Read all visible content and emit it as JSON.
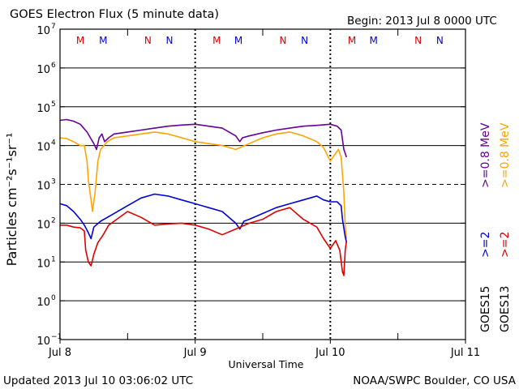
{
  "chart_data": {
    "type": "line",
    "title": "GOES Electron Flux (5 minute data)",
    "begin_label": "Begin: 2013 Jul 8 0000 UTC",
    "xlabel": "Universal Time",
    "ylabel": "Particles cm⁻²s⁻¹sr⁻¹",
    "updated": "Updated 2013 Jul 10 03:06:02 UTC",
    "source": "NOAA/SWPC Boulder, CO USA",
    "x_unit": "days since Jul 8 0000 UTC",
    "xlim": [
      0,
      3
    ],
    "ylim_log10": [
      -1,
      7
    ],
    "x_ticks": [
      {
        "x": 0,
        "label": "Jul 8"
      },
      {
        "x": 1,
        "label": "Jul 9"
      },
      {
        "x": 2,
        "label": "Jul 10"
      },
      {
        "x": 3,
        "label": "Jul 11"
      }
    ],
    "y_ticks": [
      {
        "exp": 7,
        "base": "10",
        "sup": "7"
      },
      {
        "exp": 6,
        "base": "10",
        "sup": "6"
      },
      {
        "exp": 5,
        "base": "10",
        "sup": "5"
      },
      {
        "exp": 4,
        "base": "10",
        "sup": "4"
      },
      {
        "exp": 3,
        "base": "10",
        "sup": "3"
      },
      {
        "exp": 2,
        "base": "10",
        "sup": "2"
      },
      {
        "exp": 1,
        "base": "10",
        "sup": "1"
      },
      {
        "exp": 0,
        "base": "10",
        "sup": "0"
      },
      {
        "exp": -1,
        "base": "10",
        "sup": "−1"
      }
    ],
    "gridlines_log10": [
      6,
      5,
      4,
      2,
      1,
      0
    ],
    "dashed_gridline_log10": 3,
    "noon_markers_x": [
      0.5,
      1.5,
      2.5
    ],
    "day_markers_x": [
      1,
      2
    ],
    "letter_markers": [
      {
        "x": 0.15,
        "label": "M",
        "color": "#dd0000"
      },
      {
        "x": 0.32,
        "label": "M",
        "color": "#0000dd"
      },
      {
        "x": 0.65,
        "label": "N",
        "color": "#dd0000"
      },
      {
        "x": 0.81,
        "label": "N",
        "color": "#0000dd"
      },
      {
        "x": 1.16,
        "label": "M",
        "color": "#dd0000"
      },
      {
        "x": 1.32,
        "label": "M",
        "color": "#0000dd"
      },
      {
        "x": 1.65,
        "label": "N",
        "color": "#dd0000"
      },
      {
        "x": 1.81,
        "label": "N",
        "color": "#0000dd"
      },
      {
        "x": 2.16,
        "label": "M",
        "color": "#dd0000"
      },
      {
        "x": 2.32,
        "label": "M",
        "color": "#0000dd"
      },
      {
        "x": 2.65,
        "label": "N",
        "color": "#dd0000"
      },
      {
        "x": 2.81,
        "label": "N",
        "color": "#0000dd"
      }
    ],
    "legend": {
      "placement": "right, vertical text",
      "groups": [
        {
          "satellite": "GOES15",
          "items": [
            {
              "label": ">=2",
              "color": "#0000dd"
            },
            {
              "label": ">=0.8 MeV",
              "color": "#660099"
            }
          ]
        },
        {
          "satellite": "GOES13",
          "items": [
            {
              "label": ">=2",
              "color": "#dd0000"
            },
            {
              "label": ">=0.8 MeV",
              "color": "#ffa500"
            }
          ]
        }
      ]
    },
    "series": [
      {
        "name": "GOES15 >=0.8 MeV",
        "color": "#660099",
        "points": [
          [
            0.0,
            4.65
          ],
          [
            0.05,
            4.67
          ],
          [
            0.1,
            4.63
          ],
          [
            0.15,
            4.55
          ],
          [
            0.2,
            4.35
          ],
          [
            0.25,
            4.05
          ],
          [
            0.27,
            3.9
          ],
          [
            0.29,
            4.2
          ],
          [
            0.31,
            4.3
          ],
          [
            0.33,
            4.1
          ],
          [
            0.36,
            4.2
          ],
          [
            0.4,
            4.3
          ],
          [
            0.5,
            4.35
          ],
          [
            0.6,
            4.4
          ],
          [
            0.7,
            4.45
          ],
          [
            0.8,
            4.5
          ],
          [
            0.9,
            4.53
          ],
          [
            1.0,
            4.55
          ],
          [
            1.1,
            4.5
          ],
          [
            1.2,
            4.45
          ],
          [
            1.3,
            4.25
          ],
          [
            1.33,
            4.1
          ],
          [
            1.35,
            4.2
          ],
          [
            1.4,
            4.25
          ],
          [
            1.5,
            4.33
          ],
          [
            1.6,
            4.4
          ],
          [
            1.7,
            4.45
          ],
          [
            1.8,
            4.5
          ],
          [
            1.9,
            4.52
          ],
          [
            2.0,
            4.55
          ],
          [
            2.05,
            4.5
          ],
          [
            2.08,
            4.4
          ],
          [
            2.1,
            3.9
          ],
          [
            2.12,
            3.7
          ]
        ]
      },
      {
        "name": "GOES13 >=0.8 MeV",
        "color": "#ffa500",
        "points": [
          [
            0.0,
            4.2
          ],
          [
            0.05,
            4.18
          ],
          [
            0.1,
            4.1
          ],
          [
            0.15,
            4.0
          ],
          [
            0.18,
            4.0
          ],
          [
            0.2,
            3.6
          ],
          [
            0.21,
            3.1
          ],
          [
            0.23,
            2.6
          ],
          [
            0.24,
            2.3
          ],
          [
            0.26,
            2.8
          ],
          [
            0.28,
            3.6
          ],
          [
            0.3,
            3.9
          ],
          [
            0.35,
            4.1
          ],
          [
            0.4,
            4.2
          ],
          [
            0.5,
            4.25
          ],
          [
            0.6,
            4.3
          ],
          [
            0.7,
            4.35
          ],
          [
            0.8,
            4.3
          ],
          [
            0.9,
            4.2
          ],
          [
            1.0,
            4.1
          ],
          [
            1.1,
            4.05
          ],
          [
            1.2,
            4.0
          ],
          [
            1.3,
            3.9
          ],
          [
            1.4,
            4.05
          ],
          [
            1.5,
            4.2
          ],
          [
            1.6,
            4.3
          ],
          [
            1.7,
            4.35
          ],
          [
            1.8,
            4.25
          ],
          [
            1.9,
            4.1
          ],
          [
            1.95,
            3.95
          ],
          [
            2.0,
            3.6
          ],
          [
            2.03,
            3.75
          ],
          [
            2.06,
            3.9
          ],
          [
            2.08,
            3.7
          ],
          [
            2.1,
            2.8
          ],
          [
            2.11,
            1.9
          ],
          [
            2.12,
            1.6
          ]
        ]
      },
      {
        "name": "GOES15 >=2 MeV",
        "color": "#0000dd",
        "points": [
          [
            0.0,
            2.5
          ],
          [
            0.05,
            2.45
          ],
          [
            0.1,
            2.3
          ],
          [
            0.15,
            2.1
          ],
          [
            0.18,
            1.95
          ],
          [
            0.21,
            1.75
          ],
          [
            0.23,
            1.6
          ],
          [
            0.25,
            1.9
          ],
          [
            0.3,
            2.05
          ],
          [
            0.4,
            2.25
          ],
          [
            0.5,
            2.45
          ],
          [
            0.6,
            2.65
          ],
          [
            0.7,
            2.75
          ],
          [
            0.8,
            2.7
          ],
          [
            0.9,
            2.6
          ],
          [
            1.0,
            2.5
          ],
          [
            1.1,
            2.4
          ],
          [
            1.2,
            2.3
          ],
          [
            1.3,
            2.0
          ],
          [
            1.33,
            1.85
          ],
          [
            1.36,
            2.05
          ],
          [
            1.4,
            2.1
          ],
          [
            1.5,
            2.25
          ],
          [
            1.6,
            2.4
          ],
          [
            1.7,
            2.5
          ],
          [
            1.8,
            2.6
          ],
          [
            1.85,
            2.65
          ],
          [
            1.9,
            2.7
          ],
          [
            1.95,
            2.6
          ],
          [
            2.0,
            2.55
          ],
          [
            2.05,
            2.55
          ],
          [
            2.08,
            2.45
          ],
          [
            2.09,
            2.1
          ],
          [
            2.11,
            1.65
          ],
          [
            2.12,
            1.5
          ]
        ]
      },
      {
        "name": "GOES13 >=2 MeV",
        "color": "#dd0000",
        "points": [
          [
            0.0,
            1.95
          ],
          [
            0.05,
            1.95
          ],
          [
            0.1,
            1.9
          ],
          [
            0.15,
            1.88
          ],
          [
            0.18,
            1.8
          ],
          [
            0.19,
            1.3
          ],
          [
            0.21,
            1.0
          ],
          [
            0.23,
            0.9
          ],
          [
            0.25,
            1.2
          ],
          [
            0.28,
            1.5
          ],
          [
            0.32,
            1.7
          ],
          [
            0.36,
            1.95
          ],
          [
            0.4,
            2.05
          ],
          [
            0.5,
            2.3
          ],
          [
            0.6,
            2.15
          ],
          [
            0.7,
            1.95
          ],
          [
            0.8,
            1.98
          ],
          [
            0.9,
            2.0
          ],
          [
            1.0,
            1.95
          ],
          [
            1.1,
            1.85
          ],
          [
            1.2,
            1.7
          ],
          [
            1.3,
            1.85
          ],
          [
            1.4,
            2.0
          ],
          [
            1.5,
            2.1
          ],
          [
            1.6,
            2.3
          ],
          [
            1.7,
            2.4
          ],
          [
            1.8,
            2.1
          ],
          [
            1.9,
            1.9
          ],
          [
            1.95,
            1.6
          ],
          [
            2.0,
            1.35
          ],
          [
            2.04,
            1.55
          ],
          [
            2.07,
            1.3
          ],
          [
            2.09,
            0.75
          ],
          [
            2.1,
            0.65
          ],
          [
            2.11,
            1.3
          ],
          [
            2.12,
            1.55
          ]
        ]
      }
    ]
  }
}
